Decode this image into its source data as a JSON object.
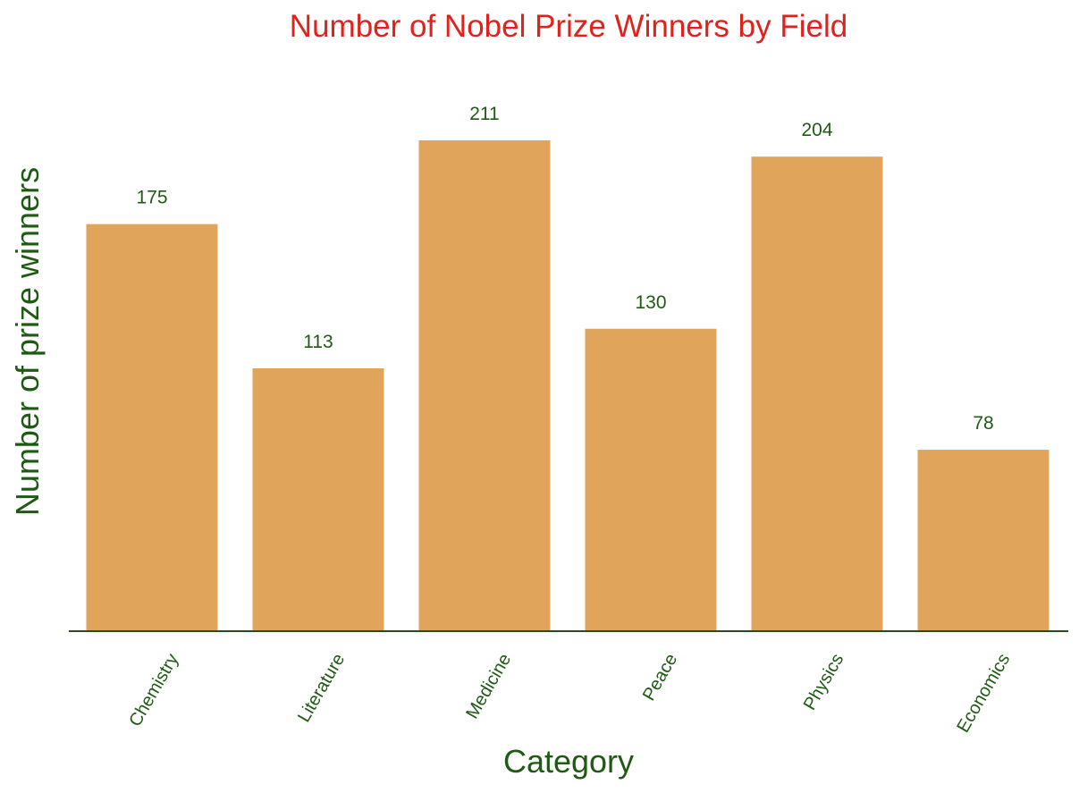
{
  "chart_data": {
    "type": "bar",
    "title": "Number of Nobel Prize Winners by Field",
    "xlabel": "Category",
    "ylabel": "Number of prize winners",
    "categories": [
      "Chemistry",
      "Literature",
      "Medicine",
      "Peace",
      "Physics",
      "Economics"
    ],
    "values": [
      175,
      113,
      211,
      130,
      204,
      78
    ],
    "data_labels": [
      "175",
      "113",
      "211",
      "130",
      "204",
      "78"
    ],
    "ylim": [
      0,
      211
    ],
    "grid": false,
    "legend": "none",
    "colors": {
      "bar": "#e0a55a",
      "title": "#e0211c",
      "axis_label": "#1f5a14",
      "tick": "#1f5a14",
      "value_label": "#1f5a14",
      "baseline": "#2b4a1e"
    }
  }
}
